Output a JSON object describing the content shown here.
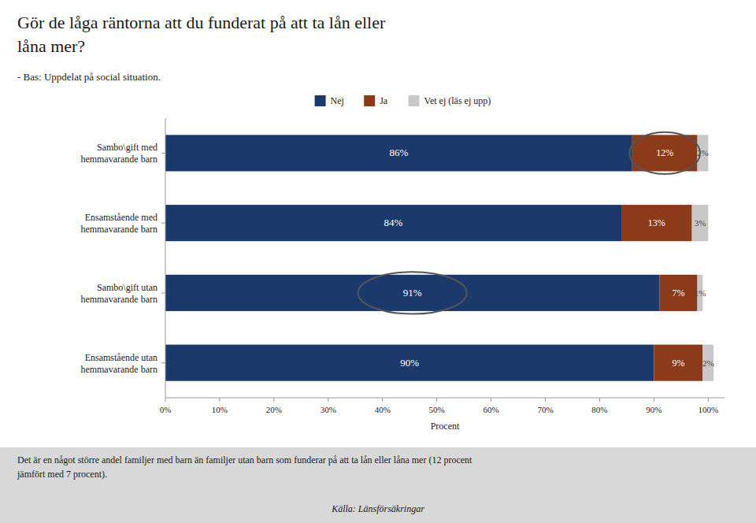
{
  "chart_data": {
    "type": "bar",
    "orientation": "horizontal",
    "stacked": true,
    "data_labels": true,
    "legend": "top",
    "grid": false,
    "title": "Gör de låga räntorna att du funderat på att ta lån eller\nlåna mer?",
    "subtitle": "- Bas: Uppdelat på social situation.",
    "x_label": "Procent",
    "categories": [
      "Sambo\\gift med\nhemmavarande barn",
      "Ensamstående med\nhemmavarande barn",
      "Sambo\\gift utan\nhemmavarande barn",
      "Ensamstående utan\nhemmavarande barn"
    ],
    "series": [
      {
        "name": "Nej",
        "color": "#1B3A6B",
        "values": [
          86,
          84,
          91,
          90
        ],
        "value_labels": [
          "86%",
          "84%",
          "91%",
          "90%"
        ]
      },
      {
        "name": "Ja",
        "color": "#8B3A1A",
        "values": [
          12,
          13,
          7,
          9
        ],
        "value_labels": [
          "12%",
          "13%",
          "7%",
          "9%"
        ]
      },
      {
        "name": "Vet ej (läs ej upp)",
        "color": "#C8C8C8",
        "values": [
          2,
          3,
          1,
          2
        ],
        "value_labels": [
          "2%",
          "3%",
          "1%",
          "2%"
        ]
      }
    ],
    "xlim": [
      0,
      103
    ],
    "xticks": [
      {
        "value": 0,
        "label": "0%"
      },
      {
        "value": 10,
        "label": "10%"
      },
      {
        "value": 20,
        "label": "20%"
      },
      {
        "value": 30,
        "label": "30%"
      },
      {
        "value": 40,
        "label": "40%"
      },
      {
        "value": 50,
        "label": "50%"
      },
      {
        "value": 60,
        "label": "60%"
      },
      {
        "value": 70,
        "label": "70%"
      },
      {
        "value": 80,
        "label": "80%"
      },
      {
        "value": 90,
        "label": "90%"
      },
      {
        "value": 100,
        "label": "100%"
      }
    ],
    "annotations": [
      "Det är en något större andel familjer med barn än familjer utan barn som funderar på att ta lån eller låna mer (12 procent\njämfört med 7 procent).",
      "Källa: Länsförsäkringar"
    ]
  }
}
